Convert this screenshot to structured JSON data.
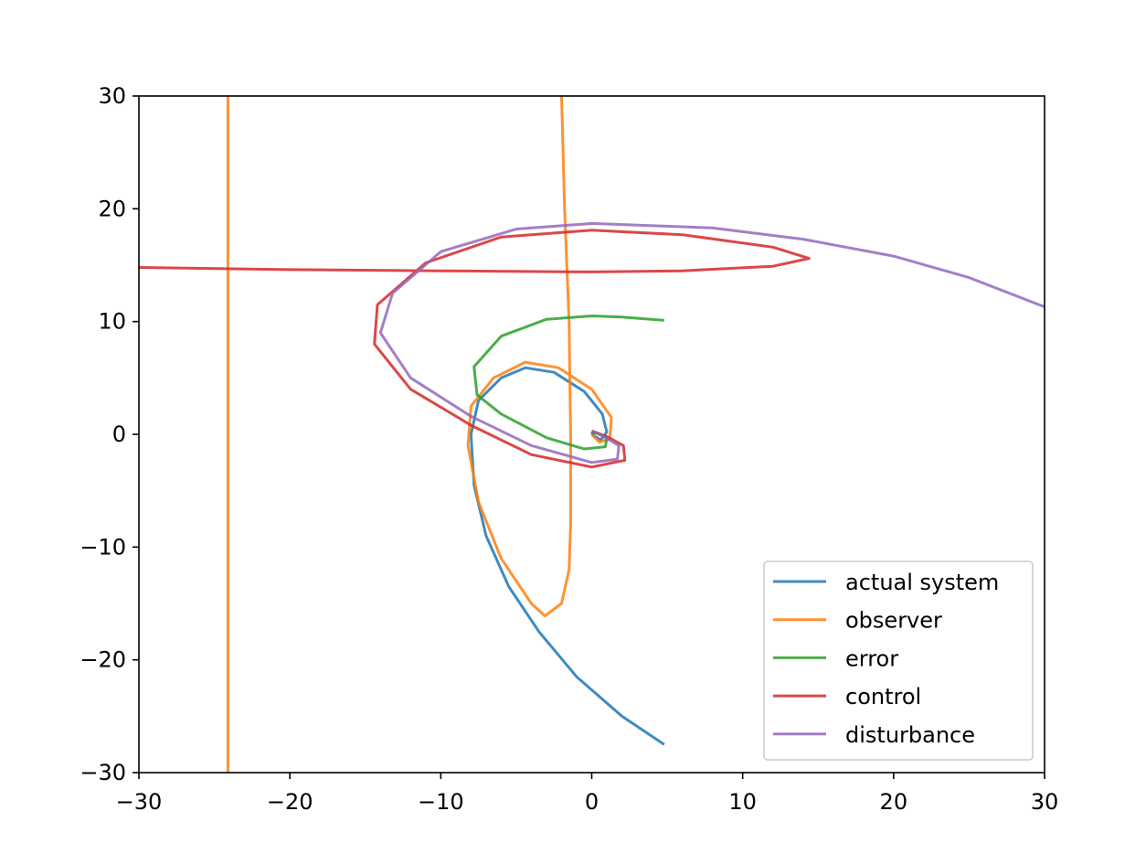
{
  "chart_data": {
    "type": "line",
    "title": "",
    "xlabel": "",
    "ylabel": "",
    "xlim": [
      -30,
      30
    ],
    "ylim": [
      -30,
      30
    ],
    "xticks": [
      -30,
      -20,
      -10,
      0,
      10,
      20,
      30
    ],
    "yticks": [
      -30,
      -20,
      -10,
      0,
      10,
      20,
      30
    ],
    "xtick_labels": [
      "−30",
      "−20",
      "−10",
      "0",
      "10",
      "20",
      "30"
    ],
    "ytick_labels": [
      "−30",
      "−20",
      "−10",
      "0",
      "10",
      "20",
      "30"
    ],
    "grid": false,
    "legend_position": "lower right",
    "series": [
      {
        "name": "actual system",
        "color": "#1f77b4",
        "points": [
          [
            4.8,
            -27.5
          ],
          [
            2,
            -25
          ],
          [
            -1,
            -21.5
          ],
          [
            -3.5,
            -17.5
          ],
          [
            -5.5,
            -13.5
          ],
          [
            -7,
            -9
          ],
          [
            -7.8,
            -4.5
          ],
          [
            -8,
            0
          ],
          [
            -7.5,
            3
          ],
          [
            -6,
            5
          ],
          [
            -4.4,
            5.9
          ],
          [
            -2.5,
            5.5
          ],
          [
            -0.5,
            3.8
          ],
          [
            0.7,
            1.8
          ],
          [
            1,
            0.2
          ],
          [
            0.6,
            -0.5
          ],
          [
            0.1,
            -0.1
          ],
          [
            0,
            0.2
          ]
        ]
      },
      {
        "name": "observer",
        "color": "#ff7f0e",
        "points": [
          [
            -24.1,
            -30
          ],
          [
            -24.1,
            0
          ],
          [
            -24.1,
            30
          ],
          null,
          [
            -2,
            30
          ],
          [
            -1.8,
            20
          ],
          [
            -1.5,
            10
          ],
          [
            -1.4,
            0
          ],
          [
            -1.4,
            -8
          ],
          [
            -1.5,
            -12
          ],
          [
            -2,
            -15
          ],
          [
            -3.1,
            -16.1
          ],
          [
            -4,
            -15
          ],
          [
            -6,
            -11
          ],
          [
            -7.5,
            -6
          ],
          [
            -8.2,
            -1
          ],
          [
            -8,
            2.5
          ],
          [
            -6.5,
            5
          ],
          [
            -4.4,
            6.4
          ],
          [
            -2.2,
            5.9
          ],
          [
            0,
            4
          ],
          [
            1.3,
            1.5
          ],
          [
            1.2,
            -0.4
          ],
          [
            0.5,
            -0.7
          ],
          [
            0,
            0
          ]
        ]
      },
      {
        "name": "error",
        "color": "#2ca02c",
        "points": [
          [
            4.8,
            10.1
          ],
          [
            2,
            10.4
          ],
          [
            0,
            10.5
          ],
          [
            -3,
            10.2
          ],
          [
            -6,
            8.7
          ],
          [
            -7.8,
            6
          ],
          [
            -7.6,
            3.5
          ],
          [
            -6,
            1.8
          ],
          [
            -3,
            -0.3
          ],
          [
            -0.5,
            -1.3
          ],
          [
            0.9,
            -1.1
          ],
          [
            1,
            -0.3
          ],
          [
            0.4,
            0.1
          ],
          [
            0,
            0.1
          ]
        ]
      },
      {
        "name": "control",
        "color": "#d62728",
        "points": [
          [
            -30,
            14.8
          ],
          [
            -20,
            14.6
          ],
          [
            -10,
            14.5
          ],
          [
            0,
            14.4
          ],
          [
            6,
            14.5
          ],
          [
            12,
            14.9
          ],
          [
            14.4,
            15.6
          ],
          [
            12,
            16.6
          ],
          [
            6,
            17.7
          ],
          [
            0,
            18.1
          ],
          [
            -6,
            17.5
          ],
          [
            -11,
            15.2
          ],
          [
            -14.2,
            11.5
          ],
          [
            -14.4,
            8
          ],
          [
            -12,
            4
          ],
          [
            -8,
            0.8
          ],
          [
            -4,
            -1.8
          ],
          [
            0,
            -2.9
          ],
          [
            2.2,
            -2.3
          ],
          [
            2.1,
            -1
          ],
          [
            1,
            -0.2
          ],
          [
            0,
            0.3
          ]
        ]
      },
      {
        "name": "disturbance",
        "color": "#9467bd",
        "points": [
          [
            30,
            11.3
          ],
          [
            25,
            13.9
          ],
          [
            20,
            15.8
          ],
          [
            14,
            17.3
          ],
          [
            8,
            18.3
          ],
          [
            0,
            18.7
          ],
          [
            -5,
            18.2
          ],
          [
            -10,
            16.2
          ],
          [
            -13.2,
            12.5
          ],
          [
            -14,
            9
          ],
          [
            -12,
            5
          ],
          [
            -8,
            1.6
          ],
          [
            -4,
            -1
          ],
          [
            0,
            -2.5
          ],
          [
            1.7,
            -2.2
          ],
          [
            1.8,
            -1
          ],
          [
            0.8,
            -0.2
          ],
          [
            0,
            0.3
          ]
        ]
      }
    ]
  }
}
